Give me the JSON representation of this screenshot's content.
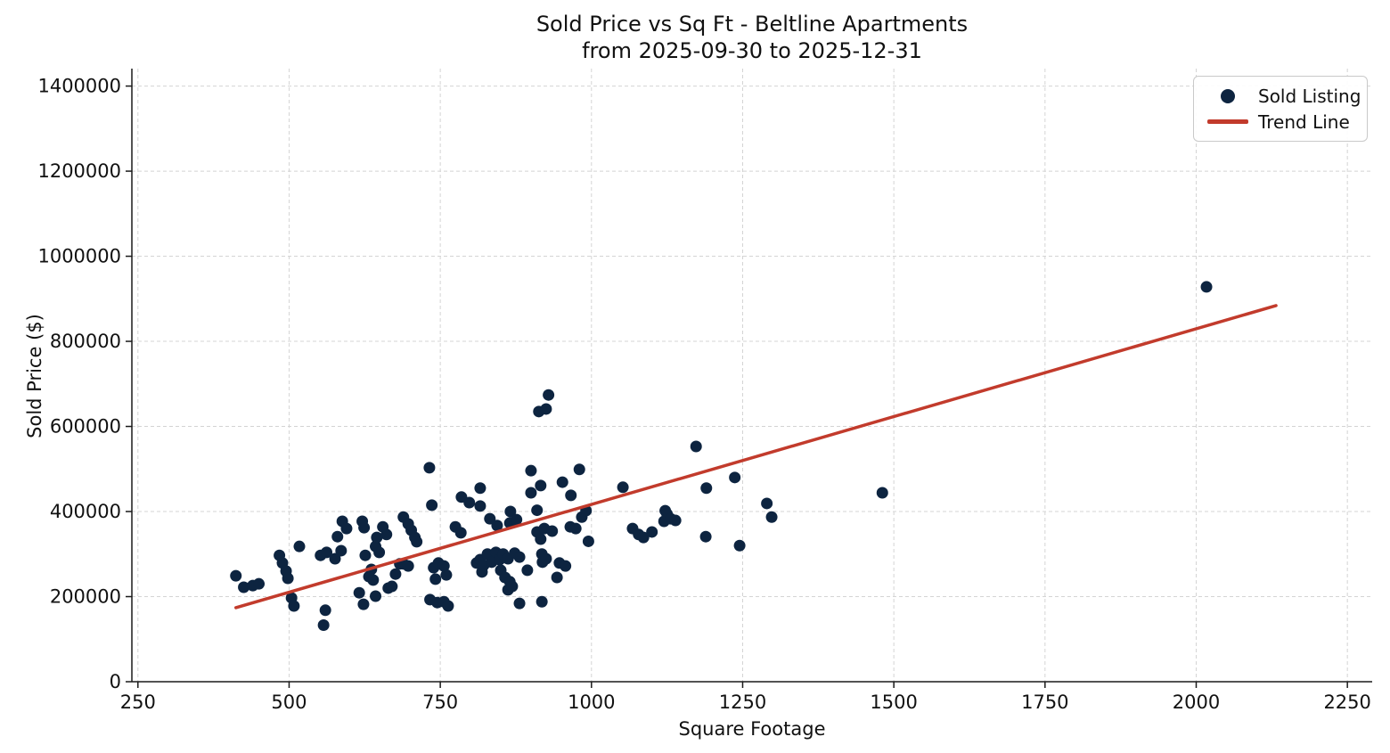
{
  "chart_data": {
    "type": "scatter",
    "title": "Sold Price vs Sq Ft - Beltline Apartments",
    "subtitle": "from 2025-09-30 to 2025-12-31",
    "xlabel": "Square Footage",
    "ylabel": "Sold Price ($)",
    "xlim": [
      240,
      2291
    ],
    "ylim": [
      0,
      1441000
    ],
    "xticks": [
      250,
      500,
      750,
      1000,
      1250,
      1500,
      1750,
      2000,
      2250
    ],
    "yticks": [
      0,
      200000,
      400000,
      600000,
      800000,
      1000000,
      1200000,
      1400000
    ],
    "grid": true,
    "grid_style": "dashed",
    "legend_position": "upper right",
    "colors": {
      "marker": "#0d2440",
      "trend": "#c23b2c",
      "gridline": "#d4d4d4",
      "spine": "#1a1a1a",
      "text": "#111111"
    },
    "series": [
      {
        "name": "Sold Listing",
        "type": "scatter",
        "color": "#0d2440",
        "marker": "circle",
        "points": [
          [
            412,
            249000
          ],
          [
            425,
            222000
          ],
          [
            440,
            226000
          ],
          [
            450,
            230000
          ],
          [
            484,
            297000
          ],
          [
            489,
            279000
          ],
          [
            495,
            260000
          ],
          [
            498,
            243000
          ],
          [
            504,
            197000
          ],
          [
            508,
            178000
          ],
          [
            517,
            318000
          ],
          [
            552,
            297000
          ],
          [
            557,
            133000
          ],
          [
            560,
            168000
          ],
          [
            562,
            304000
          ],
          [
            576,
            289000
          ],
          [
            580,
            341000
          ],
          [
            586,
            308000
          ],
          [
            588,
            377000
          ],
          [
            595,
            360000
          ],
          [
            616,
            209000
          ],
          [
            621,
            377000
          ],
          [
            623,
            182000
          ],
          [
            624,
            362000
          ],
          [
            626,
            297000
          ],
          [
            632,
            247000
          ],
          [
            636,
            264000
          ],
          [
            639,
            239000
          ],
          [
            643,
            318000
          ],
          [
            643,
            201000
          ],
          [
            645,
            339000
          ],
          [
            649,
            304000
          ],
          [
            655,
            364000
          ],
          [
            661,
            346000
          ],
          [
            664,
            220000
          ],
          [
            670,
            224000
          ],
          [
            676,
            253000
          ],
          [
            683,
            277000
          ],
          [
            689,
            277000
          ],
          [
            689,
            387000
          ],
          [
            697,
            272000
          ],
          [
            697,
            371000
          ],
          [
            702,
            356000
          ],
          [
            708,
            339000
          ],
          [
            711,
            329000
          ],
          [
            732,
            503000
          ],
          [
            733,
            193000
          ],
          [
            736,
            415000
          ],
          [
            739,
            268000
          ],
          [
            742,
            241000
          ],
          [
            745,
            186000
          ],
          [
            747,
            279000
          ],
          [
            756,
            272000
          ],
          [
            756,
            188000
          ],
          [
            760,
            251000
          ],
          [
            763,
            178000
          ],
          [
            775,
            364000
          ],
          [
            784,
            350000
          ],
          [
            785,
            434000
          ],
          [
            798,
            421000
          ],
          [
            810,
            279000
          ],
          [
            816,
            413000
          ],
          [
            816,
            455000
          ],
          [
            816,
            287000
          ],
          [
            819,
            258000
          ],
          [
            822,
            274000
          ],
          [
            828,
            300000
          ],
          [
            832,
            383000
          ],
          [
            835,
            281000
          ],
          [
            842,
            304000
          ],
          [
            844,
            367000
          ],
          [
            848,
            287000
          ],
          [
            850,
            262000
          ],
          [
            854,
            300000
          ],
          [
            857,
            245000
          ],
          [
            862,
            289000
          ],
          [
            862,
            216000
          ],
          [
            865,
            235000
          ],
          [
            865,
            373000
          ],
          [
            866,
            400000
          ],
          [
            869,
            224000
          ],
          [
            873,
            302000
          ],
          [
            876,
            381000
          ],
          [
            881,
            293000
          ],
          [
            881,
            184000
          ],
          [
            894,
            262000
          ],
          [
            900,
            496000
          ],
          [
            900,
            444000
          ],
          [
            910,
            403000
          ],
          [
            910,
            352000
          ],
          [
            913,
            635000
          ],
          [
            916,
            335000
          ],
          [
            916,
            461000
          ],
          [
            918,
            300000
          ],
          [
            918,
            188000
          ],
          [
            919,
            281000
          ],
          [
            922,
            360000
          ],
          [
            925,
            641000
          ],
          [
            925,
            289000
          ],
          [
            929,
            674000
          ],
          [
            935,
            354000
          ],
          [
            943,
            245000
          ],
          [
            947,
            279000
          ],
          [
            952,
            469000
          ],
          [
            957,
            272000
          ],
          [
            965,
            364000
          ],
          [
            966,
            438000
          ],
          [
            974,
            360000
          ],
          [
            980,
            499000
          ],
          [
            984,
            387000
          ],
          [
            991,
            402000
          ],
          [
            995,
            330000
          ],
          [
            1052,
            457000
          ],
          [
            1068,
            360000
          ],
          [
            1078,
            346000
          ],
          [
            1086,
            339000
          ],
          [
            1100,
            352000
          ],
          [
            1120,
            377000
          ],
          [
            1122,
            402000
          ],
          [
            1125,
            394000
          ],
          [
            1131,
            383000
          ],
          [
            1139,
            379000
          ],
          [
            1173,
            553000
          ],
          [
            1189,
            341000
          ],
          [
            1190,
            455000
          ],
          [
            1237,
            480000
          ],
          [
            1245,
            320000
          ],
          [
            1290,
            419000
          ],
          [
            1298,
            387000
          ],
          [
            1481,
            444000
          ],
          [
            2017,
            928000
          ]
        ]
      }
    ],
    "trend_line": {
      "name": "Trend Line",
      "color": "#c23b2c",
      "from": [
        412,
        174000
      ],
      "to": [
        2132,
        884000
      ]
    }
  },
  "legend": {
    "sold_listing": "Sold Listing",
    "trend_line": "Trend Line"
  }
}
